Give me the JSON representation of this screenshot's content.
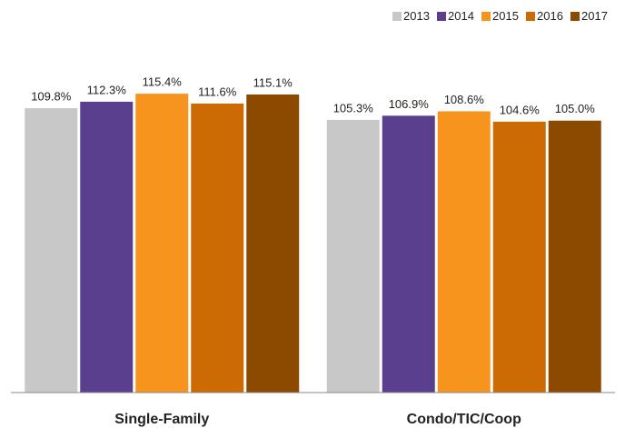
{
  "chart_data": {
    "type": "bar",
    "categories": [
      "Single-Family",
      "Condo/TIC/Coop"
    ],
    "series": [
      {
        "name": "2013",
        "color": "#c8c8c8",
        "values": [
          109.8,
          105.3
        ],
        "value_labels": [
          "109.8%",
          "105.3%"
        ]
      },
      {
        "name": "2014",
        "color": "#5b3f8f",
        "values": [
          112.3,
          106.9
        ],
        "value_labels": [
          "112.3%",
          "106.9%"
        ]
      },
      {
        "name": "2015",
        "color": "#f7941d",
        "values": [
          115.4,
          108.6
        ],
        "value_labels": [
          "115.4%",
          "108.6%"
        ]
      },
      {
        "name": "2016",
        "color": "#cc6a04",
        "values": [
          111.6,
          104.6
        ],
        "value_labels": [
          "111.6%",
          "104.6%"
        ]
      },
      {
        "name": "2017",
        "color": "#8b4a00",
        "values": [
          115.1,
          105.0
        ],
        "value_labels": [
          "115.1%",
          "105.0%"
        ]
      }
    ],
    "ylim": [
      0,
      120
    ],
    "legend": "top-right"
  }
}
